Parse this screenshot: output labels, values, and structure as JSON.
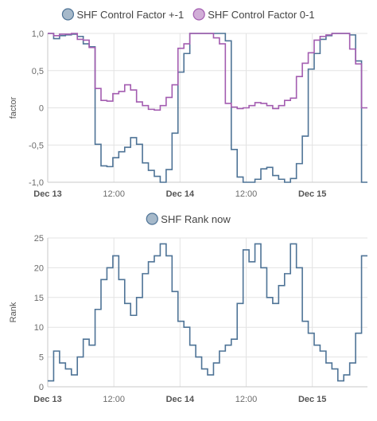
{
  "chart_data": [
    {
      "type": "line",
      "step": true,
      "ylabel": "factor",
      "ylim": [
        -1.0,
        1.0
      ],
      "y_ticks": [
        "1,0",
        "0,5",
        "0",
        "-0,5",
        "-1,0"
      ],
      "y_tick_values": [
        1.0,
        0.5,
        0,
        -0.5,
        -1.0
      ],
      "x_ticks": [
        {
          "label": "Dec 13",
          "h": 0,
          "bold": true
        },
        {
          "label": "12:00",
          "h": 12,
          "bold": false
        },
        {
          "label": "Dec 14",
          "h": 24,
          "bold": true
        },
        {
          "label": "12:00",
          "h": 36,
          "bold": false
        },
        {
          "label": "Dec 15",
          "h": 48,
          "bold": true
        }
      ],
      "x_range_hours": [
        0,
        58
      ],
      "legend_position": "top-center",
      "grid": true,
      "series": [
        {
          "name": "SHF Control Factor +-1",
          "color": "#4e7396",
          "values": [
            1.0,
            0.93,
            0.97,
            0.98,
            0.99,
            0.96,
            0.86,
            0.82,
            -0.49,
            -0.78,
            -0.79,
            -0.67,
            -0.59,
            -0.53,
            -0.4,
            -0.49,
            -0.74,
            -0.84,
            -0.92,
            -1.0,
            -0.83,
            -0.34,
            0.48,
            0.73,
            1.0,
            1.0,
            1.0,
            1.0,
            1.0,
            1.0,
            0.9,
            -0.56,
            -0.93,
            -1.0,
            -1.0,
            -0.96,
            -0.82,
            -0.8,
            -0.91,
            -0.96,
            -1.0,
            -0.95,
            -0.75,
            -0.38,
            0.52,
            0.73,
            0.92,
            0.97,
            1.0,
            1.0,
            1.0,
            0.98,
            0.63,
            -1.0
          ]
        },
        {
          "name": "SHF Control Factor 0-1",
          "color": "#a35cb0",
          "values": [
            1.0,
            0.97,
            0.99,
            0.99,
            1.0,
            0.92,
            0.91,
            0.81,
            0.26,
            0.1,
            0.09,
            0.19,
            0.22,
            0.31,
            0.24,
            0.08,
            0.03,
            -0.02,
            -0.03,
            0.03,
            0.14,
            0.31,
            0.8,
            0.86,
            1.0,
            1.0,
            1.0,
            1.0,
            0.94,
            0.86,
            0.06,
            0.01,
            -0.01,
            0.0,
            0.03,
            0.07,
            0.06,
            0.03,
            -0.01,
            0.03,
            0.1,
            0.13,
            0.42,
            0.6,
            0.74,
            0.91,
            0.96,
            0.98,
            1.0,
            1.0,
            1.0,
            0.79,
            0.59,
            0.0
          ]
        }
      ]
    },
    {
      "type": "line",
      "step": true,
      "ylabel": "Rank",
      "ylim": [
        0,
        25
      ],
      "y_ticks": [
        "25",
        "20",
        "15",
        "10",
        "5",
        "0"
      ],
      "y_tick_values": [
        25,
        20,
        15,
        10,
        5,
        0
      ],
      "x_ticks": [
        {
          "label": "Dec 13",
          "h": 0,
          "bold": true
        },
        {
          "label": "12:00",
          "h": 12,
          "bold": false
        },
        {
          "label": "Dec 14",
          "h": 24,
          "bold": true
        },
        {
          "label": "12:00",
          "h": 36,
          "bold": false
        },
        {
          "label": "Dec 15",
          "h": 48,
          "bold": true
        }
      ],
      "x_range_hours": [
        0,
        58
      ],
      "legend_position": "top-center",
      "grid": true,
      "series": [
        {
          "name": "SHF Rank now",
          "color": "#4e7396",
          "values": [
            1,
            6,
            4,
            3,
            2,
            5,
            8,
            7,
            13,
            18,
            20,
            22,
            18,
            14,
            12,
            15,
            19,
            21,
            22,
            24,
            22,
            16,
            11,
            10,
            7,
            5,
            3,
            2,
            4,
            6,
            7,
            8,
            14,
            23,
            21,
            24,
            20,
            15,
            14,
            17,
            19,
            24,
            20,
            11,
            9,
            7,
            6,
            4,
            3,
            1,
            2,
            4,
            9,
            22
          ]
        }
      ]
    }
  ]
}
